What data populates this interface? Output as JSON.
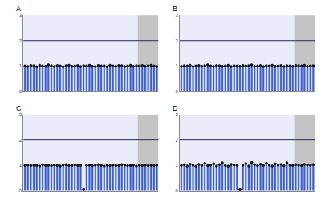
{
  "chart_data": [
    {
      "type": "bar",
      "title": "A",
      "color": "#3a5fcd",
      "marker": "circle",
      "tick_labels": "y",
      "grid": false,
      "ylim": [
        0,
        3
      ],
      "yticks": [
        0,
        1,
        2,
        3
      ],
      "reference_line": 2,
      "shaded_categories": [
        39,
        45
      ],
      "categories": [
        null,
        null,
        null,
        null,
        null,
        null,
        null,
        null,
        null,
        null,
        null,
        null,
        null,
        null,
        null,
        null,
        null,
        null,
        null,
        null,
        null,
        null,
        null,
        null,
        null,
        null,
        null,
        null,
        null,
        null,
        null,
        null,
        null,
        null,
        null,
        null,
        null,
        null,
        null,
        null,
        null,
        null,
        null,
        null,
        null,
        null
      ],
      "values": [
        1.0,
        0.98,
        1.02,
        1.01,
        0.97,
        1.03,
        1.0,
        0.99,
        1.04,
        1.01,
        0.98,
        1.02,
        1.0,
        0.97,
        1.01,
        1.03,
        0.99,
        1.0,
        1.02,
        0.98,
        1.01,
        1.0,
        1.03,
        0.99,
        0.98,
        1.02,
        1.0,
        1.01,
        0.97,
        1.03,
        1.0,
        0.99,
        1.02,
        1.01,
        0.98,
        1.0,
        1.03,
        0.99,
        1.01,
        1.0,
        1.02,
        0.99,
        1.01,
        1.03,
        1.0,
        0.98
      ]
    },
    {
      "type": "bar",
      "title": "B",
      "color": "#3a5fcd",
      "marker": "circle",
      "tick_labels": "y",
      "grid": false,
      "ylim": [
        0,
        3
      ],
      "yticks": [
        0,
        1,
        2,
        3
      ],
      "reference_line": 2,
      "shaded_categories": [
        39,
        45
      ],
      "categories": [
        null,
        null,
        null,
        null,
        null,
        null,
        null,
        null,
        null,
        null,
        null,
        null,
        null,
        null,
        null,
        null,
        null,
        null,
        null,
        null,
        null,
        null,
        null,
        null,
        null,
        null,
        null,
        null,
        null,
        null,
        null,
        null,
        null,
        null,
        null,
        null,
        null,
        null,
        null,
        null,
        null,
        null,
        null,
        null,
        null,
        null
      ],
      "values": [
        0.99,
        1.01,
        1.0,
        1.03,
        0.98,
        1.0,
        1.02,
        0.99,
        1.01,
        1.04,
        1.0,
        0.98,
        1.02,
        1.01,
        0.99,
        1.0,
        1.03,
        0.98,
        1.01,
        1.0,
        0.99,
        1.02,
        1.0,
        1.01,
        1.04,
        0.99,
        1.0,
        1.02,
        0.98,
        1.01,
        1.0,
        1.03,
        0.99,
        1.0,
        1.02,
        0.98,
        1.01,
        1.0,
        0.99,
        1.02,
        1.01,
        1.0,
        1.03,
        0.99,
        1.0,
        1.01
      ]
    },
    {
      "type": "bar",
      "title": "C",
      "color": "#3a5fcd",
      "marker": "circle",
      "tick_labels": "y",
      "grid": false,
      "ylim": [
        0,
        3
      ],
      "yticks": [
        0,
        1,
        2,
        3
      ],
      "reference_line": 2,
      "shaded_categories": [
        39,
        45
      ],
      "categories": [
        null,
        null,
        null,
        null,
        null,
        null,
        null,
        null,
        null,
        null,
        null,
        null,
        null,
        null,
        null,
        null,
        null,
        null,
        null,
        null,
        null,
        null,
        null,
        null,
        null,
        null,
        null,
        null,
        null,
        null,
        null,
        null,
        null,
        null,
        null,
        null,
        null,
        null,
        null,
        null,
        null,
        null,
        null,
        null,
        null,
        null
      ],
      "values": [
        1.0,
        1.02,
        0.99,
        1.01,
        1.0,
        0.98,
        1.03,
        1.0,
        1.01,
        0.99,
        1.02,
        1.0,
        0.98,
        1.01,
        1.03,
        1.0,
        0.99,
        1.02,
        1.0,
        1.01,
        0.05,
        1.0,
        1.02,
        0.99,
        1.01,
        1.03,
        1.0,
        0.98,
        1.01,
        1.0,
        1.02,
        0.99,
        1.0,
        1.03,
        1.01,
        0.99,
        1.0,
        1.02,
        0.98,
        1.01,
        1.0,
        1.02,
        0.99,
        1.01,
        1.0,
        1.02
      ]
    },
    {
      "type": "bar",
      "title": "D",
      "color": "#3a5fcd",
      "marker": "circle",
      "tick_labels": "y",
      "grid": false,
      "ylim": [
        0,
        3
      ],
      "yticks": [
        0,
        1,
        2,
        3
      ],
      "reference_line": 2,
      "shaded_categories": [
        39,
        45
      ],
      "categories": [
        null,
        null,
        null,
        null,
        null,
        null,
        null,
        null,
        null,
        null,
        null,
        null,
        null,
        null,
        null,
        null,
        null,
        null,
        null,
        null,
        null,
        null,
        null,
        null,
        null,
        null,
        null,
        null,
        null,
        null,
        null,
        null,
        null,
        null,
        null,
        null,
        null,
        null,
        null,
        null,
        null,
        null,
        null,
        null,
        null,
        null
      ],
      "values": [
        1.0,
        1.03,
        0.98,
        1.05,
        1.01,
        0.97,
        1.04,
        1.0,
        1.08,
        0.99,
        1.02,
        1.06,
        0.98,
        1.03,
        1.1,
        1.0,
        0.97,
        1.04,
        1.02,
        1.0,
        0.05,
        1.01,
        1.07,
        0.98,
        1.12,
        1.03,
        0.99,
        1.05,
        1.0,
        1.09,
        1.02,
        0.98,
        1.06,
        1.01,
        1.04,
        0.99,
        1.1,
        1.02,
        1.0,
        1.03,
        1.01,
        0.99,
        1.04,
        1.02,
        1.0,
        1.03
      ]
    }
  ]
}
